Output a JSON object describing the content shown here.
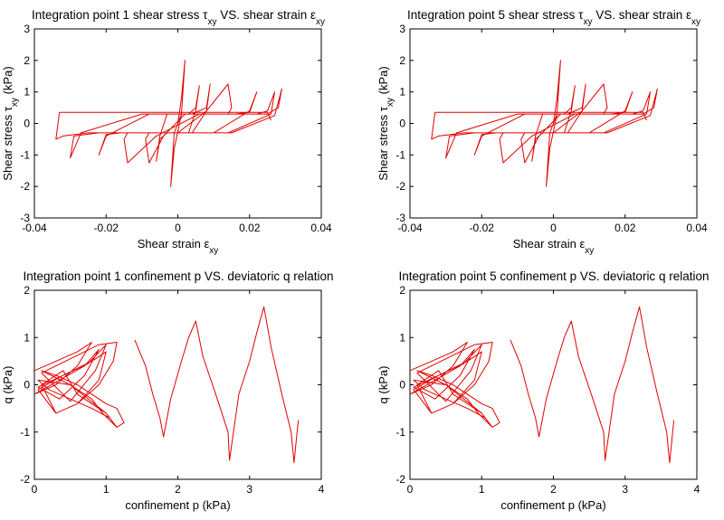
{
  "chart_data": [
    {
      "type": "line",
      "title_main": "Integration point 1 shear stress τ",
      "title_sub1": "xy",
      "title_mid": " VS. shear strain ε",
      "title_sub2": "xy",
      "xlabel_main": "Shear strain ε",
      "xlabel_sub": "xy",
      "ylabel_main": "Shear stress τ",
      "ylabel_sub": "xy",
      "ylabel_unit": " (kPa)",
      "xlim": [
        -0.04,
        0.04
      ],
      "ylim": [
        -3,
        3
      ],
      "xticks": [
        "-0.04",
        "-0.02",
        "0",
        "0.02",
        "0.04"
      ],
      "yticks": [
        "-3",
        "-2",
        "-1",
        "0",
        "1",
        "2",
        "3"
      ],
      "series_color": "#e00000",
      "series": [
        {
          "x": [
            0,
            0.001,
            0.002,
            0.001,
            -0.001,
            -0.002,
            -0.001,
            0.001,
            0.003,
            0.005,
            0.006,
            0.005,
            0.003,
            0.001,
            -0.001,
            -0.003,
            -0.005,
            -0.006,
            -0.005,
            -0.003,
            -0.001,
            0.001,
            0.004,
            0.008,
            0.009,
            0.008,
            0.004,
            -0.002,
            -0.008,
            -0.009,
            -0.008,
            -0.004,
            0.002,
            0.008,
            0.014,
            0.015,
            0.014,
            0.008,
            0.0,
            -0.008,
            -0.014,
            -0.015,
            -0.014,
            -0.006,
            0.006,
            0.016,
            0.02,
            0.022,
            0.02,
            0.01,
            -0.004,
            -0.016,
            -0.02,
            -0.022,
            -0.02,
            -0.008,
            0.01,
            0.022,
            0.025,
            0.027,
            0.026,
            0.014,
            -0.006,
            -0.022,
            -0.029,
            -0.03,
            -0.027,
            -0.01,
            0.012,
            0.025,
            0.028,
            0.029,
            0.027,
            0.015,
            -0.005,
            -0.025,
            -0.032,
            -0.034,
            -0.033,
            -0.012,
            0.012,
            0.025,
            0.026
          ],
          "y": [
            0,
            0.8,
            2.0,
            0.3,
            -0.8,
            -2.0,
            -0.3,
            0.3,
            0.3,
            0.5,
            1.2,
            0.4,
            -0.3,
            -0.3,
            -0.3,
            -0.3,
            -0.5,
            -1.2,
            -0.4,
            0.3,
            0.3,
            0.3,
            0.3,
            0.5,
            1.25,
            0.4,
            -0.3,
            -0.3,
            -0.3,
            -0.5,
            -1.25,
            -0.4,
            0.3,
            0.3,
            0.3,
            0.5,
            1.25,
            0.4,
            -0.3,
            -0.3,
            -0.3,
            -0.5,
            -1.25,
            -0.4,
            0.3,
            0.3,
            0.35,
            1.0,
            0.4,
            -0.3,
            -0.3,
            -0.3,
            -0.35,
            -1.0,
            -0.4,
            0.3,
            0.3,
            0.3,
            0.4,
            1.0,
            0.3,
            -0.3,
            -0.3,
            -0.3,
            -0.4,
            -1.1,
            -0.3,
            0.3,
            0.3,
            0.3,
            0.5,
            1.1,
            0.25,
            -0.3,
            -0.3,
            -0.3,
            -0.4,
            -0.5,
            0.35,
            0.35,
            0.35,
            0.35,
            0.1
          ]
        }
      ]
    },
    {
      "type": "line",
      "title_main": "Integration point 5 shear stress τ",
      "title_sub1": "xy",
      "title_mid": " VS. shear strain ε",
      "title_sub2": "xy",
      "xlabel_main": "Shear strain ε",
      "xlabel_sub": "xy",
      "ylabel_main": "Shear stress τ",
      "ylabel_sub": "xy",
      "ylabel_unit": " (kPa)",
      "xlim": [
        -0.04,
        0.04
      ],
      "ylim": [
        -3,
        3
      ],
      "xticks": [
        "-0.04",
        "-0.02",
        "0",
        "0.02",
        "0.04"
      ],
      "yticks": [
        "-3",
        "-2",
        "-1",
        "0",
        "1",
        "2",
        "3"
      ],
      "series_color": "#e00000",
      "series": [
        {
          "x": [
            0,
            0.001,
            0.002,
            0.001,
            -0.001,
            -0.002,
            -0.001,
            0.001,
            0.003,
            0.005,
            0.006,
            0.005,
            0.003,
            0.001,
            -0.001,
            -0.003,
            -0.005,
            -0.006,
            -0.005,
            -0.003,
            -0.001,
            0.001,
            0.004,
            0.008,
            0.009,
            0.008,
            0.004,
            -0.002,
            -0.008,
            -0.009,
            -0.008,
            -0.004,
            0.002,
            0.008,
            0.014,
            0.015,
            0.014,
            0.008,
            0.0,
            -0.008,
            -0.014,
            -0.015,
            -0.014,
            -0.006,
            0.006,
            0.016,
            0.02,
            0.022,
            0.02,
            0.01,
            -0.004,
            -0.016,
            -0.02,
            -0.022,
            -0.02,
            -0.008,
            0.01,
            0.022,
            0.025,
            0.027,
            0.026,
            0.014,
            -0.006,
            -0.022,
            -0.029,
            -0.03,
            -0.027,
            -0.01,
            0.012,
            0.025,
            0.028,
            0.029,
            0.027,
            0.015,
            -0.005,
            -0.025,
            -0.032,
            -0.034,
            -0.033,
            -0.012,
            0.012,
            0.025,
            0.026
          ],
          "y": [
            0,
            0.8,
            2.0,
            0.3,
            -0.8,
            -2.0,
            -0.3,
            0.3,
            0.3,
            0.5,
            1.2,
            0.4,
            -0.3,
            -0.3,
            -0.3,
            -0.3,
            -0.5,
            -1.2,
            -0.4,
            0.3,
            0.3,
            0.3,
            0.3,
            0.5,
            1.25,
            0.4,
            -0.3,
            -0.3,
            -0.3,
            -0.5,
            -1.25,
            -0.4,
            0.3,
            0.3,
            0.3,
            0.5,
            1.25,
            0.4,
            -0.3,
            -0.3,
            -0.3,
            -0.5,
            -1.25,
            -0.4,
            0.3,
            0.3,
            0.35,
            1.0,
            0.4,
            -0.3,
            -0.3,
            -0.3,
            -0.35,
            -1.0,
            -0.4,
            0.3,
            0.3,
            0.3,
            0.4,
            1.0,
            0.3,
            -0.3,
            -0.3,
            -0.3,
            -0.4,
            -1.1,
            -0.3,
            0.3,
            0.3,
            0.3,
            0.5,
            1.1,
            0.25,
            -0.3,
            -0.3,
            -0.3,
            -0.4,
            -0.5,
            0.35,
            0.35,
            0.35,
            0.35,
            0.1
          ]
        }
      ]
    },
    {
      "type": "line",
      "title_main": "Integration point 1 confinement p VS. deviatoric q relation",
      "title_sub1": "",
      "title_mid": "",
      "title_sub2": "",
      "xlabel_main": "confinement p (kPa)",
      "xlabel_sub": "",
      "ylabel_main": "q (kPa)",
      "ylabel_sub": "",
      "ylabel_unit": "",
      "xlim": [
        0,
        4
      ],
      "ylim": [
        -2,
        2
      ],
      "xticks": [
        "0",
        "1",
        "2",
        "3",
        "4"
      ],
      "yticks": [
        "-2",
        "-1",
        "0",
        "1",
        "2"
      ],
      "series_color": "#e00000",
      "series": [
        {
          "x": [
            0.0,
            0.3,
            0.6,
            0.8,
            0.6,
            0.3,
            0.0,
            0.35,
            0.7,
            0.9,
            0.7,
            0.35,
            0.05,
            0.4,
            0.75,
            1.0,
            0.85,
            0.5,
            0.1,
            0.5,
            0.9,
            1.15,
            1.1,
            0.9,
            0.6,
            0.3,
            0.05,
            0.4,
            0.8,
            1.0,
            0.9,
            0.6,
            0.3,
            0.1,
            0.4,
            0.6,
            1.0,
            1.15,
            1.05,
            0.8,
            0.5,
            0.2,
            0.05,
            0.5,
            0.8,
            0.95,
            1.15,
            1.25,
            1.15,
            1.0,
            0.8,
            0.6,
            0.3,
            0.1,
            0.5,
            1.0,
            1.15,
            null,
            1.4,
            1.55,
            1.65,
            1.75,
            1.8,
            1.9,
            2.05,
            2.15,
            2.25,
            2.35,
            2.55,
            2.7,
            2.72,
            2.85,
            3.0,
            3.1,
            3.2,
            3.3,
            3.45,
            3.58,
            3.62,
            3.68
          ],
          "y": [
            0.3,
            0.5,
            0.7,
            0.9,
            0.4,
            0.0,
            -0.2,
            0.1,
            0.4,
            0.75,
            0.2,
            -0.3,
            -0.05,
            0.2,
            0.45,
            0.85,
            0.3,
            -0.35,
            0.25,
            0.55,
            0.85,
            0.9,
            0.5,
            0.0,
            -0.4,
            -0.6,
            -0.1,
            0.2,
            0.5,
            0.7,
            0.1,
            -0.4,
            -0.6,
            0.0,
            0.3,
            -0.2,
            -0.6,
            -0.9,
            -0.7,
            -0.5,
            -0.3,
            -0.1,
            0.1,
            0.0,
            -0.3,
            -0.6,
            -0.9,
            -0.8,
            -0.5,
            -0.4,
            -0.2,
            0.0,
            0.2,
            0.3,
            0.0,
            -0.6,
            -0.9,
            null,
            0.95,
            0.4,
            -0.2,
            -0.7,
            -1.1,
            -0.3,
            0.5,
            1.0,
            1.35,
            0.6,
            -0.3,
            -1.0,
            -1.6,
            -0.2,
            0.5,
            1.1,
            1.65,
            0.8,
            -0.2,
            -1.0,
            -1.65,
            -0.75
          ]
        }
      ]
    },
    {
      "type": "line",
      "title_main": "Integration point 5 confinement p VS. deviatoric q relation",
      "title_sub1": "",
      "title_mid": "",
      "title_sub2": "",
      "xlabel_main": "confinement p (kPa)",
      "xlabel_sub": "",
      "ylabel_main": "q (kPa)",
      "ylabel_sub": "",
      "ylabel_unit": "",
      "xlim": [
        0,
        4
      ],
      "ylim": [
        -2,
        2
      ],
      "xticks": [
        "0",
        "1",
        "2",
        "3",
        "4"
      ],
      "yticks": [
        "-2",
        "-1",
        "0",
        "1",
        "2"
      ],
      "series_color": "#e00000",
      "series": [
        {
          "x": [
            0.0,
            0.3,
            0.6,
            0.8,
            0.6,
            0.3,
            0.0,
            0.35,
            0.7,
            0.9,
            0.7,
            0.35,
            0.05,
            0.4,
            0.75,
            1.0,
            0.85,
            0.5,
            0.1,
            0.5,
            0.9,
            1.15,
            1.1,
            0.9,
            0.6,
            0.3,
            0.05,
            0.4,
            0.8,
            1.0,
            0.9,
            0.6,
            0.3,
            0.1,
            0.4,
            0.6,
            1.0,
            1.15,
            1.05,
            0.8,
            0.5,
            0.2,
            0.05,
            0.5,
            0.8,
            0.95,
            1.15,
            1.25,
            1.15,
            1.0,
            0.8,
            0.6,
            0.3,
            0.1,
            0.5,
            1.0,
            1.15,
            null,
            1.4,
            1.55,
            1.65,
            1.75,
            1.8,
            1.9,
            2.05,
            2.15,
            2.25,
            2.35,
            2.55,
            2.7,
            2.72,
            2.85,
            3.0,
            3.1,
            3.2,
            3.3,
            3.45,
            3.58,
            3.62,
            3.68
          ],
          "y": [
            0.3,
            0.5,
            0.7,
            0.9,
            0.4,
            0.0,
            -0.2,
            0.1,
            0.4,
            0.75,
            0.2,
            -0.3,
            -0.05,
            0.2,
            0.45,
            0.85,
            0.3,
            -0.35,
            0.25,
            0.55,
            0.85,
            0.9,
            0.5,
            0.0,
            -0.4,
            -0.6,
            -0.1,
            0.2,
            0.5,
            0.7,
            0.1,
            -0.4,
            -0.6,
            0.0,
            0.3,
            -0.2,
            -0.6,
            -0.9,
            -0.7,
            -0.5,
            -0.3,
            -0.1,
            0.1,
            0.0,
            -0.3,
            -0.6,
            -0.9,
            -0.8,
            -0.5,
            -0.4,
            -0.2,
            0.0,
            0.2,
            0.3,
            0.0,
            -0.6,
            -0.9,
            null,
            0.95,
            0.4,
            -0.2,
            -0.7,
            -1.1,
            -0.3,
            0.5,
            1.0,
            1.35,
            0.6,
            -0.3,
            -1.0,
            -1.6,
            -0.2,
            0.5,
            1.1,
            1.65,
            0.8,
            -0.2,
            -1.0,
            -1.65,
            -0.75
          ]
        }
      ]
    }
  ]
}
